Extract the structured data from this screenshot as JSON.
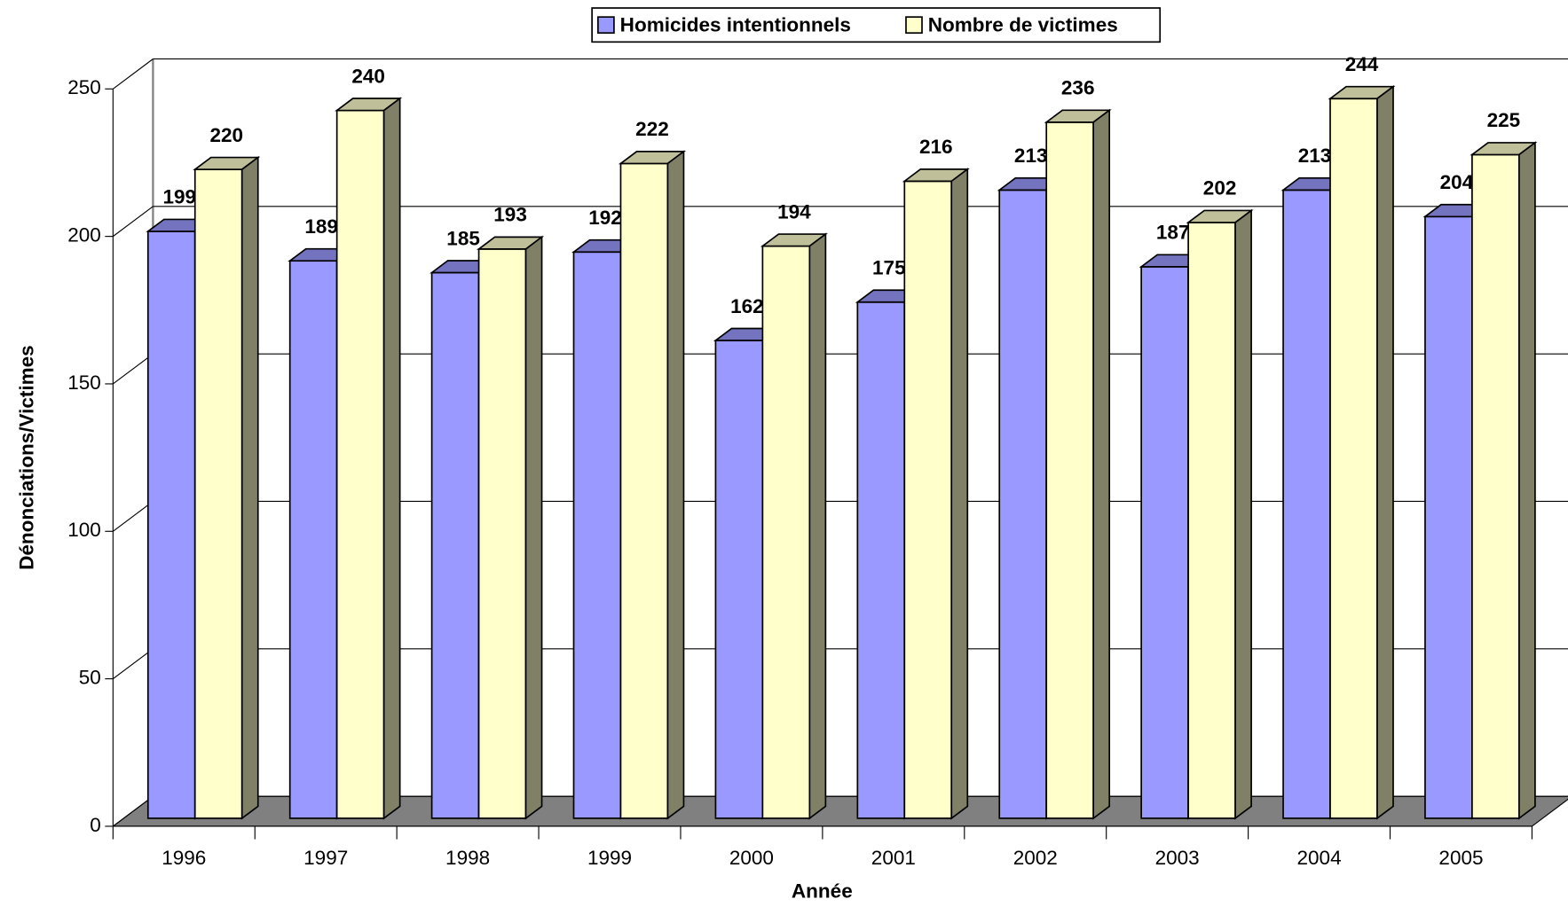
{
  "chart_data": {
    "type": "bar3d",
    "xlabel": "Année",
    "ylabel": "Dénonciations/Victimes",
    "categories": [
      "1996",
      "1997",
      "1998",
      "1999",
      "2000",
      "2001",
      "2002",
      "2003",
      "2004",
      "2005"
    ],
    "series": [
      {
        "name": "Homicides intentionnels",
        "color": "#9999ff",
        "values": [
          199,
          189,
          185,
          192,
          162,
          175,
          213,
          187,
          213,
          204
        ]
      },
      {
        "name": "Nombre de victimes",
        "color": "#ffffcc",
        "values": [
          220,
          240,
          193,
          222,
          194,
          216,
          236,
          202,
          244,
          225
        ]
      }
    ],
    "ylim": [
      0,
      250
    ],
    "yticks": [
      0,
      50,
      100,
      150,
      200,
      250
    ],
    "grid": true,
    "legend": "top"
  }
}
